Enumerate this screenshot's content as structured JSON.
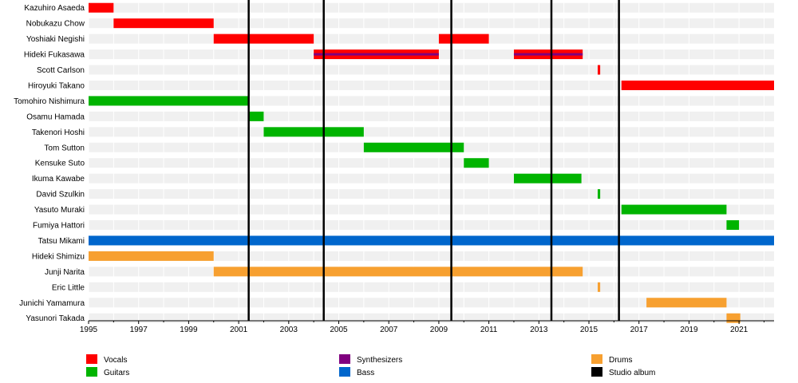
{
  "chart_data": {
    "type": "timeline",
    "xlim": [
      1995,
      2022.4
    ],
    "x_ticks": [
      1995,
      1997,
      1999,
      2001,
      2003,
      2005,
      2007,
      2009,
      2011,
      2013,
      2015,
      2017,
      2019,
      2021
    ],
    "roles": {
      "vocals": {
        "label": "Vocals",
        "color": "#ff0000"
      },
      "guitars": {
        "label": "Guitars",
        "color": "#00b400"
      },
      "synthesizers": {
        "label": "Synthesizers",
        "color": "#80007f"
      },
      "bass": {
        "label": "Bass",
        "color": "#0066cc"
      },
      "drums": {
        "label": "Drums",
        "color": "#f7a030"
      },
      "album": {
        "label": "Studio album",
        "color": "#000000"
      }
    },
    "members": [
      {
        "name": "Kazuhiro Asaeda",
        "bars": [
          {
            "role": "vocals",
            "start": 1995.0,
            "end": 1996.0
          }
        ]
      },
      {
        "name": "Nobukazu Chow",
        "bars": [
          {
            "role": "vocals",
            "start": 1996.0,
            "end": 2000.0
          }
        ]
      },
      {
        "name": "Yoshiaki Negishi",
        "bars": [
          {
            "role": "vocals",
            "start": 2000.0,
            "end": 2004.0
          },
          {
            "role": "vocals",
            "start": 2009.0,
            "end": 2011.0
          }
        ]
      },
      {
        "name": "Hideki Fukasawa",
        "bars": [
          {
            "role": "vocals",
            "start": 2004.0,
            "end": 2009.0,
            "overlay": "synthesizers"
          },
          {
            "role": "vocals",
            "start": 2012.0,
            "end": 2014.75,
            "overlay": "synthesizers"
          }
        ]
      },
      {
        "name": "Scott Carlson",
        "bars": [
          {
            "role": "vocals",
            "start": 2015.35,
            "end": 2015.45
          }
        ]
      },
      {
        "name": "Hiroyuki Takano",
        "bars": [
          {
            "role": "vocals",
            "start": 2016.3,
            "end": 2022.4
          }
        ]
      },
      {
        "name": "Tomohiro Nishimura",
        "bars": [
          {
            "role": "guitars",
            "start": 1995.0,
            "end": 2001.4
          }
        ]
      },
      {
        "name": "Osamu Hamada",
        "bars": [
          {
            "role": "guitars",
            "start": 2001.4,
            "end": 2002.0
          }
        ]
      },
      {
        "name": "Takenori Hoshi",
        "bars": [
          {
            "role": "guitars",
            "start": 2002.0,
            "end": 2006.0
          }
        ]
      },
      {
        "name": "Tom Sutton",
        "bars": [
          {
            "role": "guitars",
            "start": 2006.0,
            "end": 2010.0
          }
        ]
      },
      {
        "name": "Kensuke Suto",
        "bars": [
          {
            "role": "guitars",
            "start": 2010.0,
            "end": 2011.0
          }
        ]
      },
      {
        "name": "Ikuma Kawabe",
        "bars": [
          {
            "role": "guitars",
            "start": 2012.0,
            "end": 2014.7
          }
        ]
      },
      {
        "name": "David Szulkin",
        "bars": [
          {
            "role": "guitars",
            "start": 2015.35,
            "end": 2015.45
          }
        ]
      },
      {
        "name": "Yasuto Muraki",
        "bars": [
          {
            "role": "guitars",
            "start": 2016.3,
            "end": 2020.5
          }
        ]
      },
      {
        "name": "Fumiya Hattori",
        "bars": [
          {
            "role": "guitars",
            "start": 2020.5,
            "end": 2021.0
          }
        ]
      },
      {
        "name": "Tatsu Mikami",
        "bars": [
          {
            "role": "bass",
            "start": 1995.0,
            "end": 2022.4
          }
        ]
      },
      {
        "name": "Hideki Shimizu",
        "bars": [
          {
            "role": "drums",
            "start": 1995.0,
            "end": 2000.0
          }
        ]
      },
      {
        "name": "Junji Narita",
        "bars": [
          {
            "role": "drums",
            "start": 2000.0,
            "end": 2014.75
          }
        ]
      },
      {
        "name": "Eric Little",
        "bars": [
          {
            "role": "drums",
            "start": 2015.35,
            "end": 2015.45
          }
        ]
      },
      {
        "name": "Junichi Yamamura",
        "bars": [
          {
            "role": "drums",
            "start": 2017.3,
            "end": 2020.5
          }
        ]
      },
      {
        "name": "Yasunori Takada",
        "bars": [
          {
            "role": "drums",
            "start": 2020.5,
            "end": 2021.05
          }
        ]
      }
    ],
    "albums": [
      2001.4,
      2004.4,
      2009.5,
      2013.5,
      2016.2
    ],
    "legend": [
      {
        "role": "vocals",
        "label": "Vocals"
      },
      {
        "role": "guitars",
        "label": "Guitars"
      },
      {
        "role": "synthesizers",
        "label": "Synthesizers"
      },
      {
        "role": "bass",
        "label": "Bass"
      },
      {
        "role": "drums",
        "label": "Drums"
      },
      {
        "role": "album",
        "label": "Studio album"
      }
    ]
  }
}
